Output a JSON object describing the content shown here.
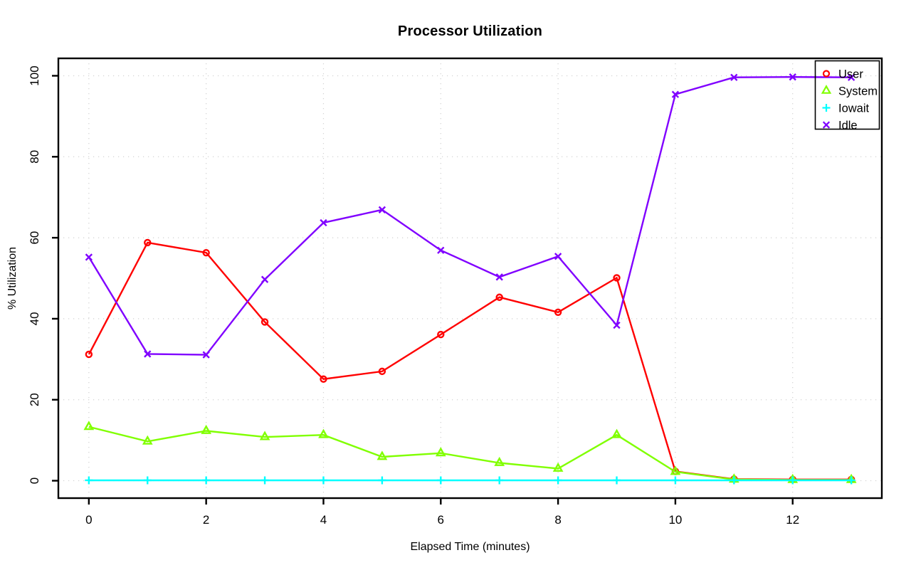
{
  "chart_data": {
    "type": "line",
    "title": "Processor Utilization",
    "xlabel": "Elapsed Time (minutes)",
    "ylabel": "% Utilization",
    "x": [
      0,
      1,
      2,
      3,
      4,
      5,
      6,
      7,
      8,
      9,
      10,
      11,
      12,
      13
    ],
    "x_ticks": [
      0,
      2,
      4,
      6,
      8,
      10,
      12
    ],
    "y_ticks": [
      0,
      20,
      40,
      60,
      80,
      100
    ],
    "xlim": [
      -0.52,
      13.52
    ],
    "ylim": [
      -4.3,
      104.3
    ],
    "grid": true,
    "legend_position": "topright",
    "series": [
      {
        "name": "User",
        "color": "#FF0000",
        "marker": "circle",
        "values": [
          31.2,
          58.8,
          56.3,
          39.2,
          25.1,
          27.0,
          36.1,
          45.3,
          41.6,
          50.1,
          2.3,
          0.4,
          0.3,
          0.3
        ]
      },
      {
        "name": "System",
        "color": "#80FF00",
        "marker": "triangle",
        "values": [
          13.3,
          9.7,
          12.3,
          10.8,
          11.3,
          5.9,
          6.8,
          4.4,
          3.0,
          11.3,
          2.2,
          0.3,
          0.2,
          0.2
        ]
      },
      {
        "name": "Iowait",
        "color": "#00FFFF",
        "marker": "plus",
        "values": [
          0.1,
          0.1,
          0.1,
          0.1,
          0.1,
          0.1,
          0.1,
          0.1,
          0.1,
          0.1,
          0.1,
          0.1,
          0.1,
          0.1
        ]
      },
      {
        "name": "Idle",
        "color": "#8000FF",
        "marker": "x",
        "values": [
          55.2,
          31.3,
          31.1,
          49.7,
          63.7,
          66.9,
          56.9,
          50.3,
          55.4,
          38.4,
          95.4,
          99.6,
          99.7,
          99.6
        ]
      }
    ]
  },
  "colors": {
    "background": "#FFFFFF",
    "axis": "#000000",
    "grid": "#D2D2D2",
    "text": "#000000"
  }
}
